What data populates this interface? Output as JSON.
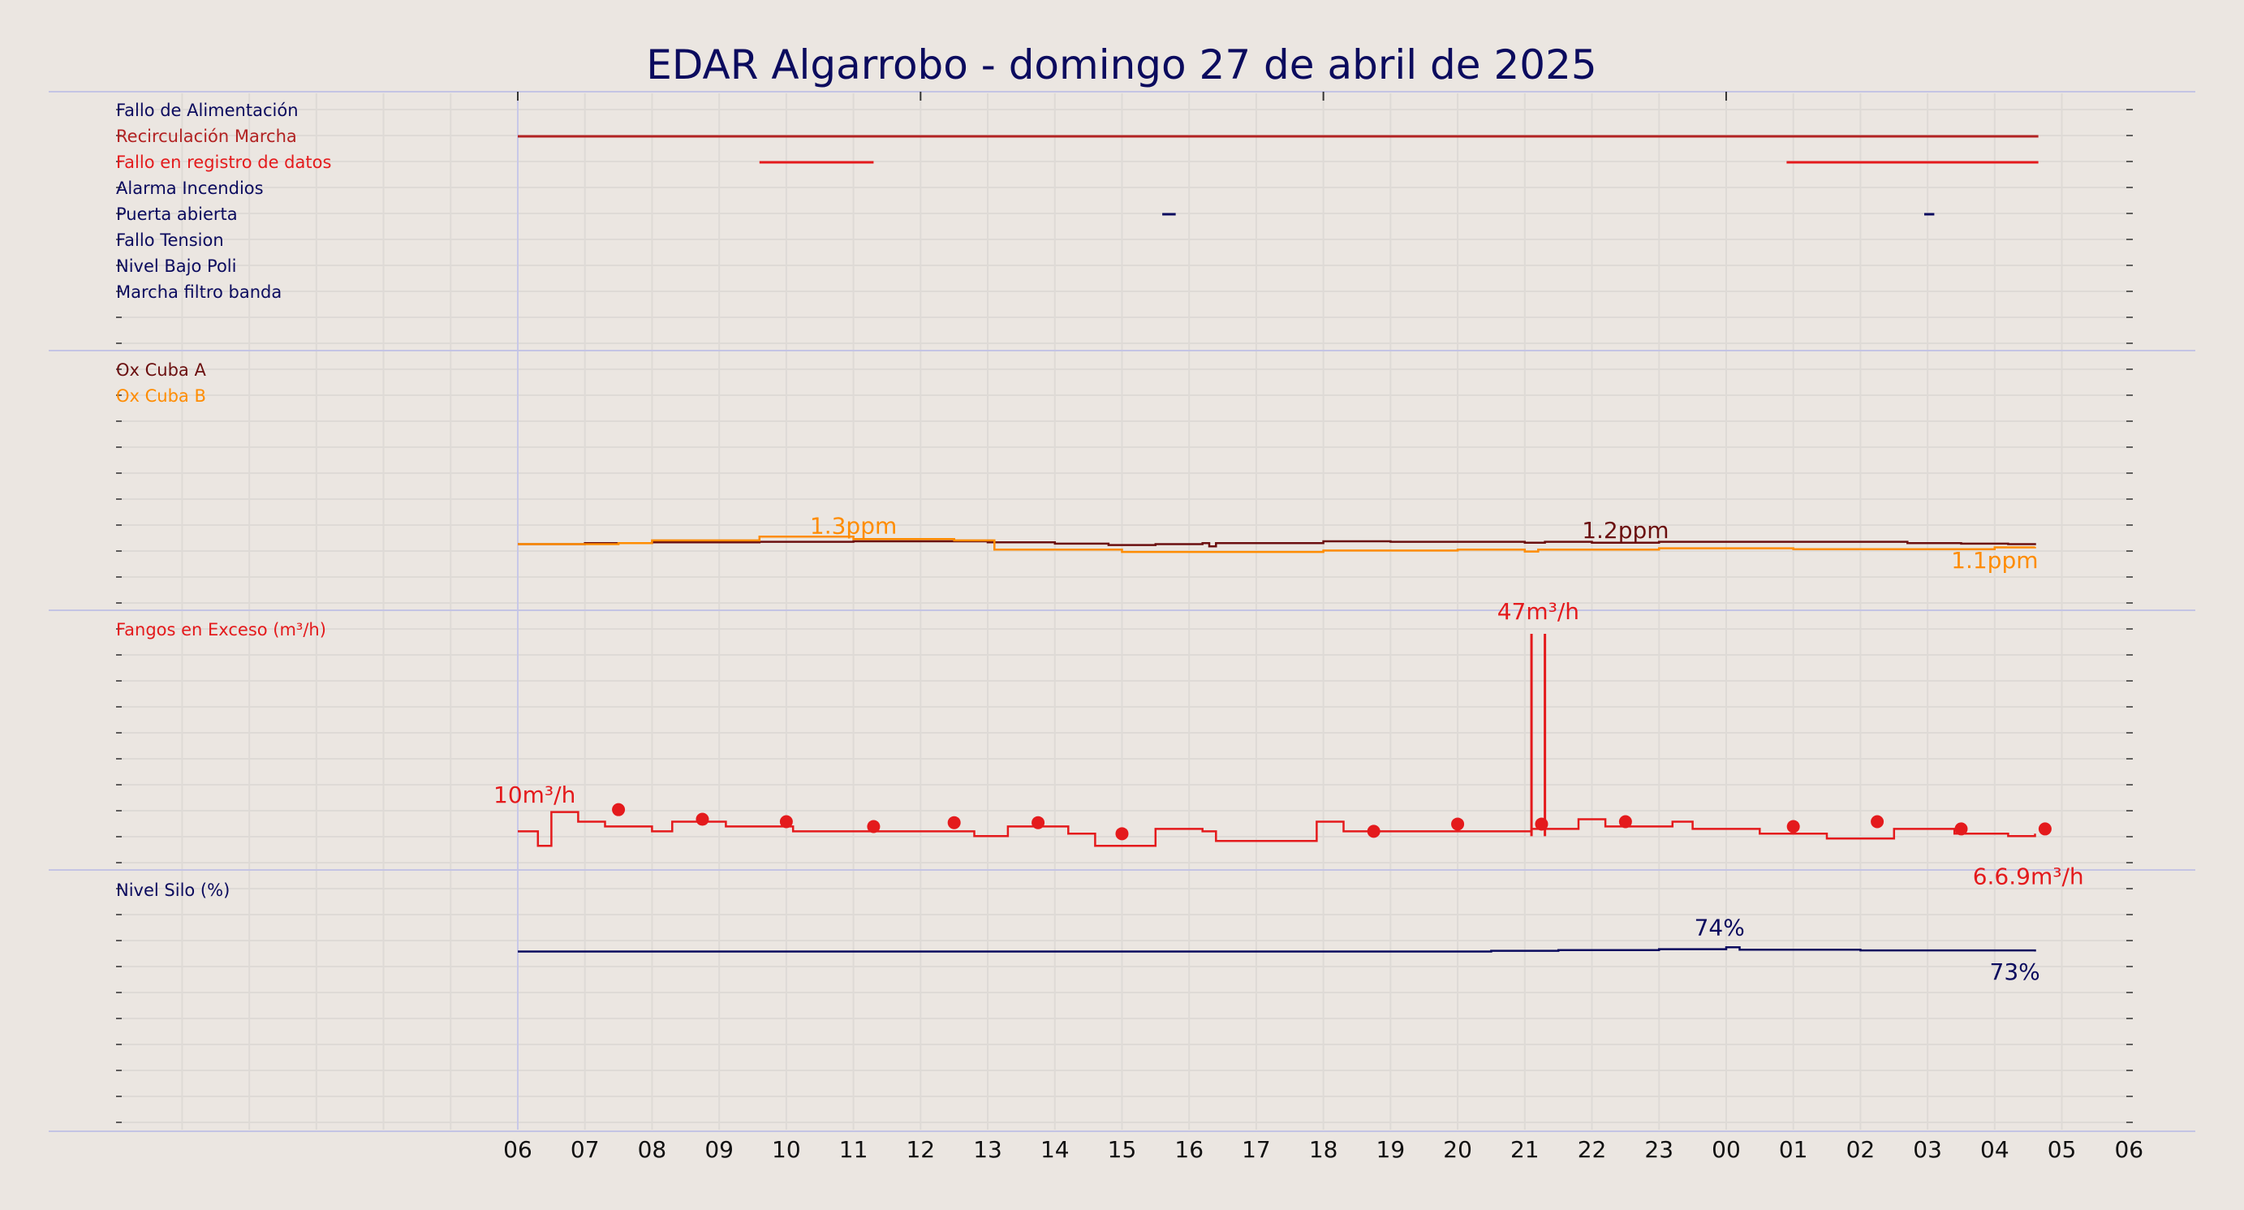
{
  "chart_data": {
    "type": "line",
    "title": "EDAR Algarrobo   -   domingo 27 de abril de 2025",
    "x_ticks": [
      "06",
      "07",
      "08",
      "09",
      "10",
      "11",
      "12",
      "13",
      "14",
      "15",
      "16",
      "17",
      "18",
      "19",
      "20",
      "21",
      "22",
      "23",
      "00",
      "01",
      "02",
      "03",
      "04",
      "05",
      "06"
    ],
    "x_range_hours": [
      -7,
      24
    ],
    "grid": true,
    "panels": [
      {
        "id": "alarms",
        "type": "status-timeline",
        "signals": [
          {
            "name": "Fallo de Alimentación",
            "color": "#0b0b5e",
            "on_intervals": []
          },
          {
            "name": "Recirculación Marcha",
            "color": "#b22222",
            "on_intervals": [
              [
                0.0,
                22.65
              ]
            ]
          },
          {
            "name": "Fallo en registro de datos",
            "color": "#e41a1c",
            "on_intervals": [
              [
                3.6,
                5.3
              ],
              [
                18.9,
                22.65
              ]
            ]
          },
          {
            "name": "Alarma Incendios",
            "color": "#0b0b5e",
            "on_intervals": []
          },
          {
            "name": "Puerta abierta",
            "color": "#0b0b5e",
            "on_intervals": [
              [
                9.6,
                9.8
              ],
              [
                20.95,
                21.1
              ]
            ]
          },
          {
            "name": "Fallo Tension",
            "color": "#0b0b5e",
            "on_intervals": []
          },
          {
            "name": "Nivel Bajo Poli",
            "color": "#0b0b5e",
            "on_intervals": []
          },
          {
            "name": "Marcha filtro banda",
            "color": "#0b0b5e",
            "on_intervals": []
          }
        ]
      },
      {
        "id": "oxygen",
        "ylim": [
          0,
          5
        ],
        "series": [
          {
            "name": "Ox Cuba A",
            "color": "#6b0f0f",
            "points": [
              [
                0,
                1.22
              ],
              [
                1,
                1.24
              ],
              [
                2,
                1.26
              ],
              [
                3.6,
                1.27
              ],
              [
                5,
                1.28
              ],
              [
                7,
                1.26
              ],
              [
                8,
                1.23
              ],
              [
                8.8,
                1.2
              ],
              [
                9.5,
                1.22
              ],
              [
                10.2,
                1.24
              ],
              [
                10.3,
                1.17
              ],
              [
                10.4,
                1.24
              ],
              [
                11.9,
                1.24
              ],
              [
                12,
                1.28
              ],
              [
                13,
                1.27
              ],
              [
                15,
                1.25
              ],
              [
                15.3,
                1.27
              ],
              [
                16,
                1.25
              ],
              [
                17,
                1.27
              ],
              [
                20.7,
                1.24
              ],
              [
                21.5,
                1.23
              ],
              [
                22.2,
                1.22
              ],
              [
                22.6,
                1.24
              ]
            ],
            "labels": [
              {
                "text": "1.2ppm",
                "x": 16.5,
                "y": 1.35
              }
            ]
          },
          {
            "name": "Ox Cuba B",
            "color": "#ff8c00",
            "points": [
              [
                0,
                1.22
              ],
              [
                1.5,
                1.24
              ],
              [
                2,
                1.3
              ],
              [
                3.6,
                1.38
              ],
              [
                5,
                1.33
              ],
              [
                6.5,
                1.3
              ],
              [
                7.1,
                1.1
              ],
              [
                9,
                1.05
              ],
              [
                12,
                1.08
              ],
              [
                14,
                1.1
              ],
              [
                15,
                1.06
              ],
              [
                15.2,
                1.1
              ],
              [
                17,
                1.13
              ],
              [
                19,
                1.11
              ],
              [
                22,
                1.15
              ],
              [
                22.6,
                1.16
              ]
            ],
            "labels": [
              {
                "text": "1.3ppm",
                "x": 5.0,
                "y": 1.45
              },
              {
                "text": "1.1ppm",
                "x": 22.0,
                "y": 0.7
              }
            ]
          }
        ]
      },
      {
        "id": "sludge",
        "ylim": [
          0,
          48
        ],
        "series": [
          {
            "name": "Fangos en Exceso (m³/h)",
            "color": "#e41a1c",
            "points": [
              [
                0,
                6.0
              ],
              [
                0.3,
                3.0
              ],
              [
                0.5,
                10.0
              ],
              [
                0.9,
                8.0
              ],
              [
                1.3,
                7.0
              ],
              [
                2.0,
                6.0
              ],
              [
                2.3,
                8.0
              ],
              [
                3.1,
                7.0
              ],
              [
                4.1,
                6.0
              ],
              [
                6.8,
                5.0
              ],
              [
                7.3,
                7.0
              ],
              [
                8.2,
                5.5
              ],
              [
                8.6,
                3.0
              ],
              [
                9.5,
                6.5
              ],
              [
                10.2,
                6.0
              ],
              [
                10.4,
                4.0
              ],
              [
                11.9,
                8.0
              ],
              [
                12.3,
                6.0
              ],
              [
                15.1,
                6.5
              ],
              [
                15.8,
                8.5
              ],
              [
                16.2,
                7.0
              ],
              [
                17.2,
                8.0
              ],
              [
                17.5,
                6.5
              ],
              [
                18.5,
                5.5
              ],
              [
                19.5,
                4.5
              ],
              [
                20.5,
                6.5
              ],
              [
                21.4,
                5.5
              ],
              [
                22.2,
                5.0
              ],
              [
                22.6,
                5.5
              ]
            ],
            "spikes": [
              [
                15.1,
                47
              ],
              [
                15.3,
                47
              ]
            ],
            "markers": [
              [
                1.5,
                10.5
              ],
              [
                2.75,
                8.5
              ],
              [
                4.0,
                8.0
              ],
              [
                5.3,
                7.0
              ],
              [
                6.5,
                7.8
              ],
              [
                7.75,
                7.8
              ],
              [
                9.0,
                5.5
              ],
              [
                12.75,
                6.0
              ],
              [
                14.0,
                7.5
              ],
              [
                15.25,
                7.5
              ],
              [
                16.5,
                8.0
              ],
              [
                19.0,
                7.0
              ],
              [
                20.25,
                8.0
              ],
              [
                21.5,
                6.5
              ],
              [
                22.75,
                6.5
              ]
            ],
            "labels": [
              {
                "text": "10m³/h",
                "x": 0.25,
                "y": 12.0
              },
              {
                "text": "47m³/h",
                "x": 15.2,
                "y": 50.0
              },
              {
                "text": "6.6.9m³/h",
                "x": 22.5,
                "y": -5.0
              }
            ]
          }
        ]
      },
      {
        "id": "silo",
        "ylim": [
          0,
          100
        ],
        "series": [
          {
            "name": "Nivel Silo (%)",
            "color": "#0b0b5e",
            "points": [
              [
                0,
                73
              ],
              [
                14.5,
                73.3
              ],
              [
                15.5,
                73.6
              ],
              [
                17,
                74
              ],
              [
                18.0,
                74.8
              ],
              [
                18.2,
                73.8
              ],
              [
                20,
                73.5
              ],
              [
                22.6,
                73
              ]
            ],
            "labels": [
              {
                "text": "74%",
                "x": 17.9,
                "y": 80
              },
              {
                "text": "73%",
                "x": 22.3,
                "y": 61
              }
            ]
          }
        ]
      }
    ]
  }
}
